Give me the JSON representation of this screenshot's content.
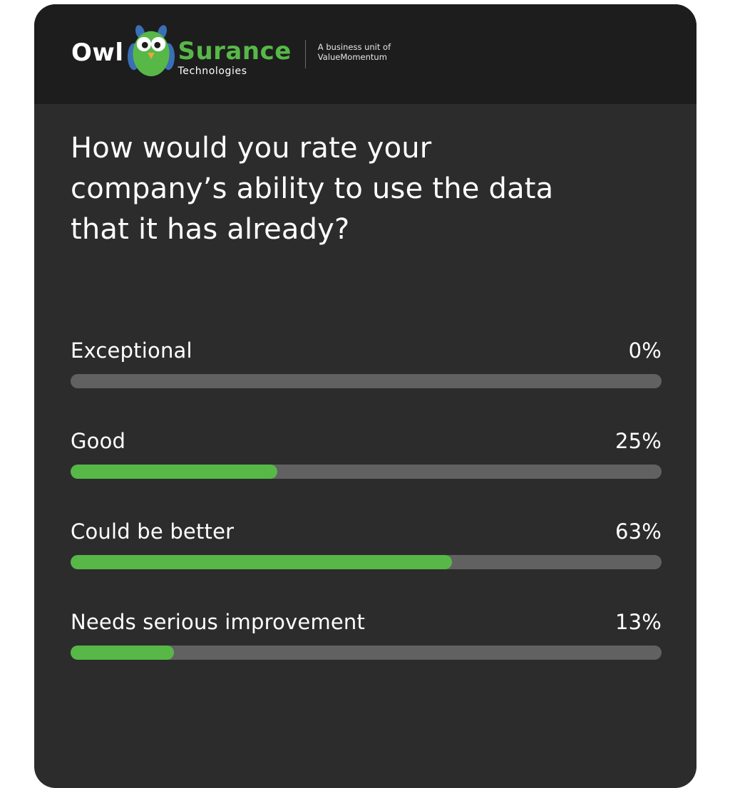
{
  "colors": {
    "page_background": "#ffffff",
    "card_background": "#2c2c2d",
    "header_background": "#1d1d1e",
    "accent_green": "#57b847",
    "owl_blue": "#3a6fb7",
    "owl_beak_orange": "#f2a33c",
    "bar_track_gray": "#616161",
    "text_white": "#ffffff"
  },
  "logo": {
    "wordmark_prefix": "Owl",
    "wordmark_suffix": "Surance",
    "wordmark_sub": "Technologies",
    "owl_icon": "owl-mascot-icon",
    "tagline_line1": "A business unit of",
    "tagline_line2": "ValueMomentum"
  },
  "question": {
    "text": "How would you rate your company’s ability to use the data that it has already?"
  },
  "poll": {
    "rows": [
      {
        "label": "Exceptional",
        "value": "0%",
        "fill_percent": 0
      },
      {
        "label": "Good",
        "value": "25%",
        "fill_percent": 35
      },
      {
        "label": "Could be better",
        "value": "63%",
        "fill_percent": 64.5
      },
      {
        "label": "Needs serious improvement",
        "value": "13%",
        "fill_percent": 17.5
      }
    ]
  },
  "chart_data": {
    "type": "bar",
    "orientation": "horizontal",
    "title": "How would you rate your company’s ability to use the data that it has already?",
    "categories": [
      "Exceptional",
      "Good",
      "Could be better",
      "Needs serious improvement"
    ],
    "values": [
      0,
      25,
      63,
      13
    ],
    "unit": "percent",
    "xlim": [
      0,
      100
    ],
    "grid": false,
    "legend": false,
    "bar_color": "#57b847",
    "track_color": "#616161"
  }
}
